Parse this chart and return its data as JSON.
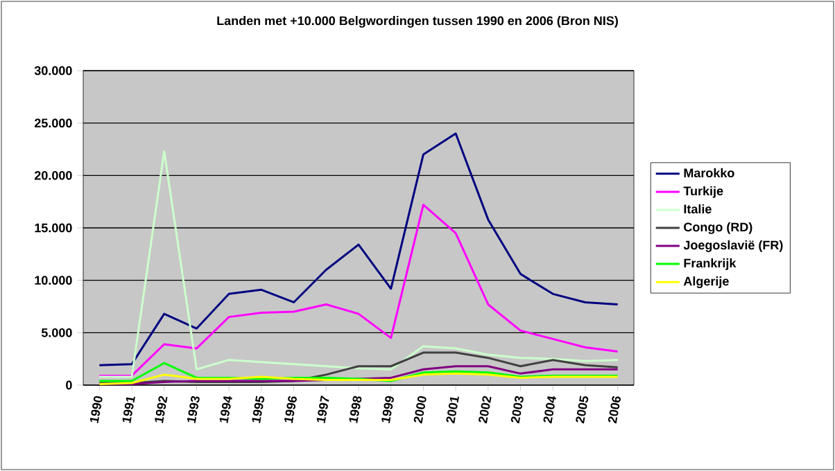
{
  "chart_data": {
    "type": "line",
    "title": "Landen met +10.000 Belgwordingen tussen 1990 en 2006 (Bron NIS)",
    "categories": [
      "1990",
      "1991",
      "1992",
      "1993",
      "1994",
      "1995",
      "1996",
      "1997",
      "1998",
      "1999",
      "2000",
      "2001",
      "2002",
      "2003",
      "2004",
      "2005",
      "2006"
    ],
    "series": [
      {
        "name": "Marokko",
        "color": "#000080",
        "values": [
          1900,
          2000,
          6800,
          5400,
          8700,
          9100,
          7900,
          11000,
          13400,
          9200,
          22000,
          24000,
          15800,
          10600,
          8700,
          7900,
          7700
        ]
      },
      {
        "name": "Turkije",
        "color": "#ff00ff",
        "values": [
          900,
          900,
          3900,
          3500,
          6500,
          6900,
          7000,
          7700,
          6800,
          4500,
          17200,
          14500,
          7700,
          5200,
          4400,
          3600,
          3200
        ]
      },
      {
        "name": "Italie",
        "color": "#ccffcc",
        "values": [
          800,
          800,
          22300,
          1500,
          2400,
          2200,
          2000,
          1800,
          1600,
          1500,
          3700,
          3500,
          2900,
          2600,
          2500,
          2300,
          2400
        ]
      },
      {
        "name": "Congo (RD)",
        "color": "#404040",
        "values": [
          200,
          200,
          400,
          300,
          300,
          300,
          400,
          1000,
          1800,
          1800,
          3100,
          3100,
          2600,
          1800,
          2400,
          1900,
          1700
        ]
      },
      {
        "name": "Joegoslavië (FR)",
        "color": "#800080",
        "values": [
          100,
          100,
          300,
          400,
          400,
          400,
          400,
          500,
          600,
          700,
          1500,
          1800,
          1800,
          1100,
          1500,
          1500,
          1500
        ]
      },
      {
        "name": "Frankrijk",
        "color": "#00ff00",
        "values": [
          400,
          400,
          2100,
          700,
          700,
          600,
          700,
          700,
          600,
          400,
          1200,
          1300,
          1200,
          800,
          900,
          900,
          900
        ]
      },
      {
        "name": "Algerije",
        "color": "#ffff00",
        "values": [
          100,
          200,
          1000,
          600,
          600,
          800,
          600,
          500,
          500,
          500,
          1000,
          1100,
          1000,
          700,
          800,
          800,
          800
        ]
      }
    ],
    "ylim": [
      0,
      30000
    ],
    "yticks": [
      {
        "value": 0,
        "label": "0"
      },
      {
        "value": 5000,
        "label": "5.000"
      },
      {
        "value": 10000,
        "label": "10.000"
      },
      {
        "value": 15000,
        "label": "15.000"
      },
      {
        "value": 20000,
        "label": "20.000"
      },
      {
        "value": 25000,
        "label": "25.000"
      },
      {
        "value": 30000,
        "label": "30.000"
      }
    ],
    "grid": "y",
    "legend": "right",
    "marker": "none",
    "line_style": "solid"
  }
}
